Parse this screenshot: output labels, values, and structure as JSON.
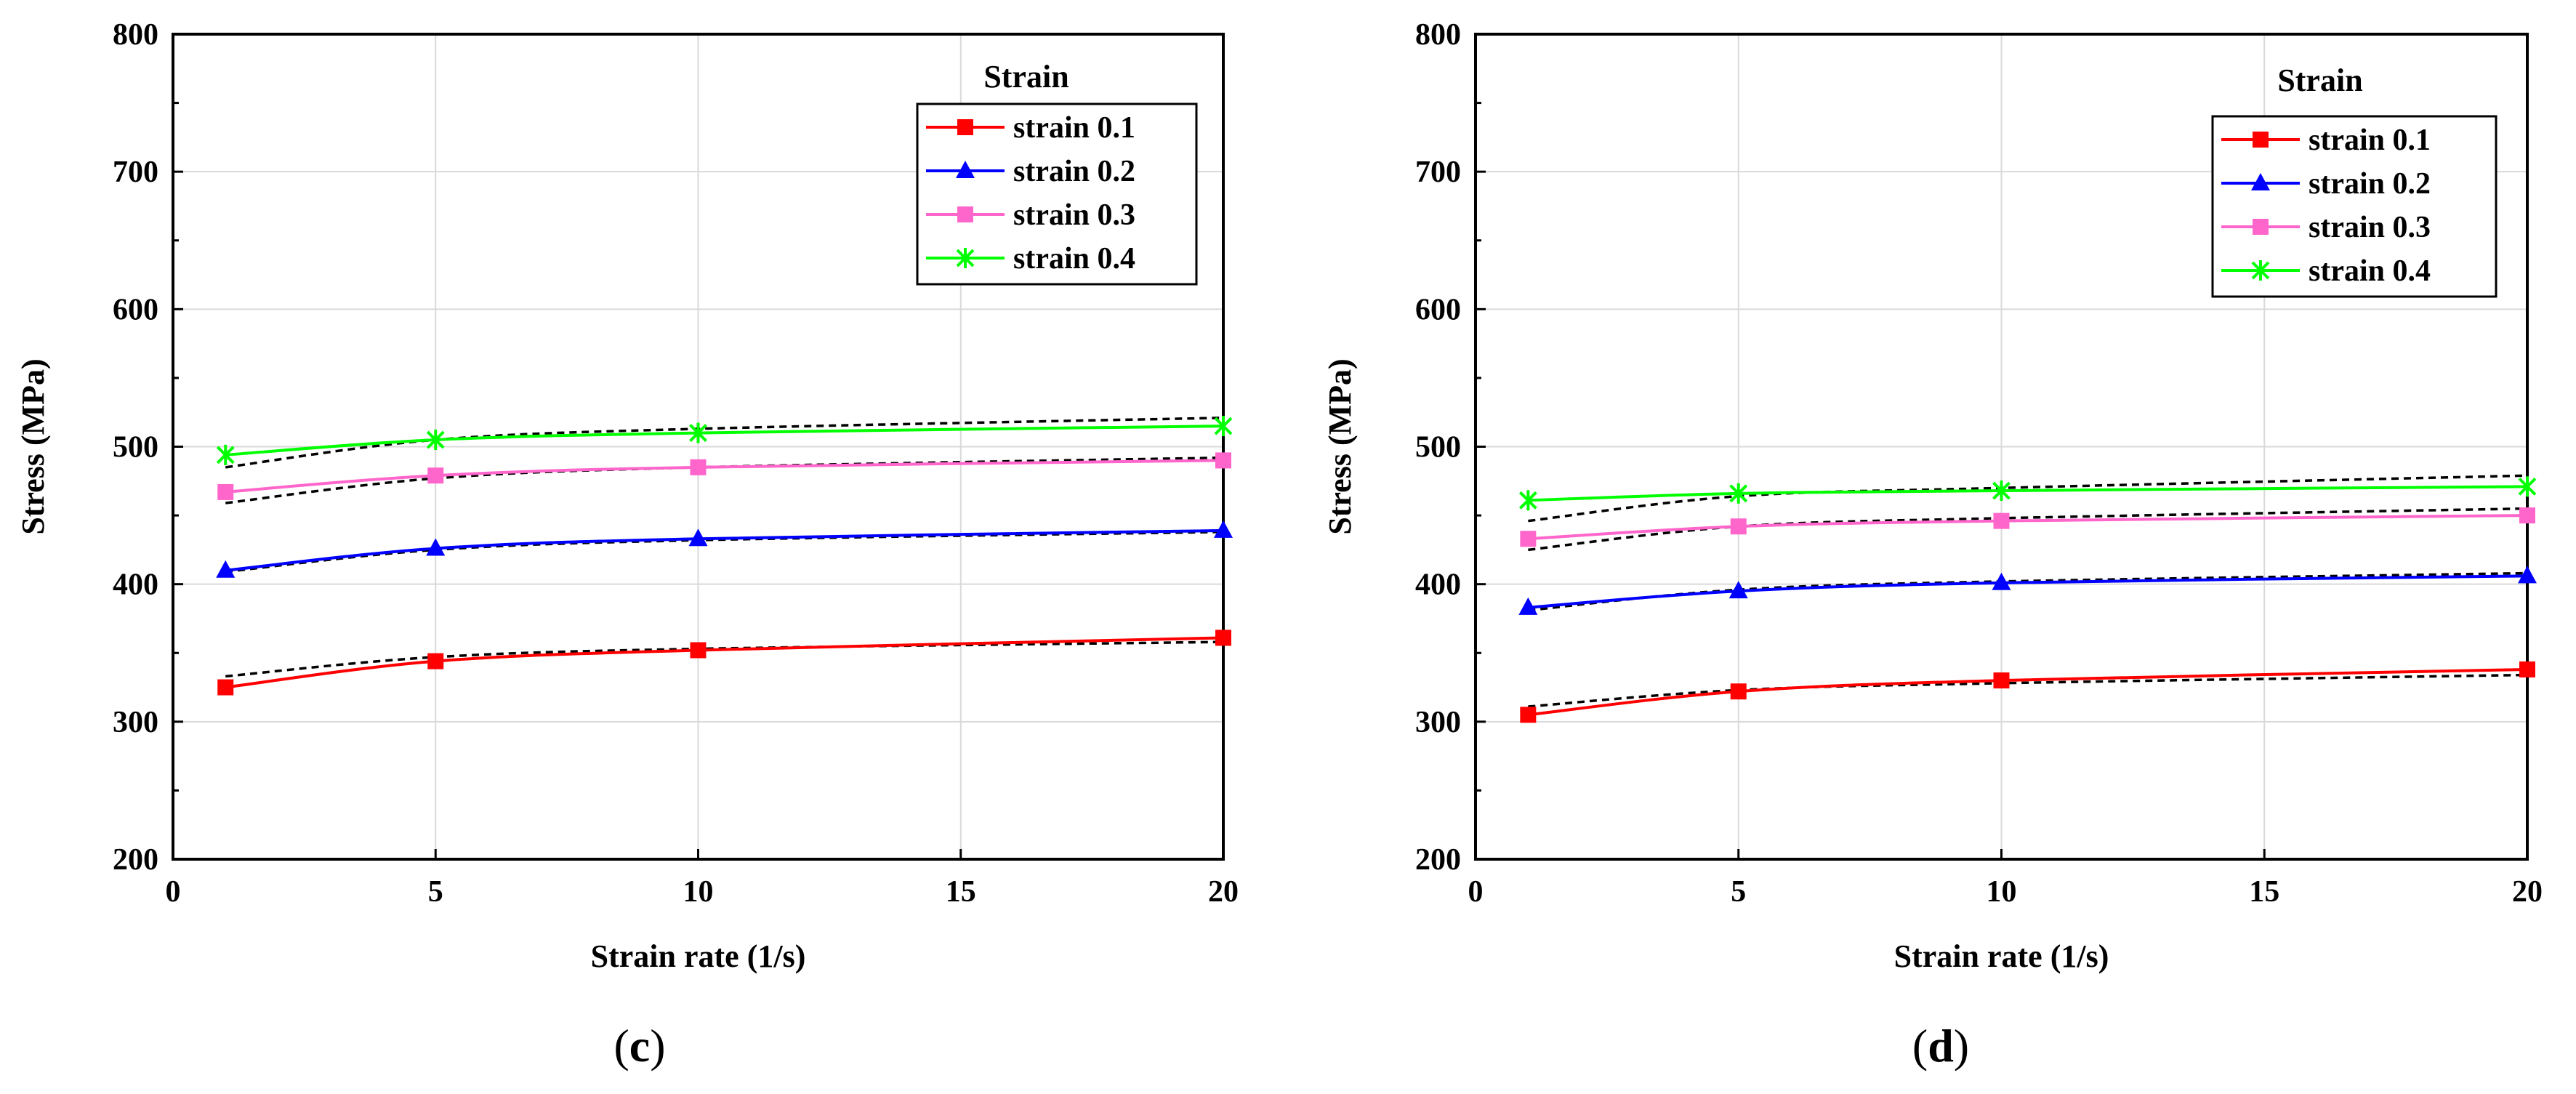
{
  "chart_data": [
    {
      "type": "line",
      "panel_label": "c",
      "xlabel": "Strain rate (1/s)",
      "ylabel": "Stress (MPa)",
      "xlim": [
        0,
        20
      ],
      "ylim": [
        200,
        800
      ],
      "xticks": [
        0,
        5,
        10,
        15,
        20
      ],
      "yticks": [
        200,
        300,
        400,
        500,
        600,
        700,
        800
      ],
      "grid": true,
      "legend": {
        "title": "Strain",
        "placement": "top-right",
        "boxed_title": false
      },
      "x": [
        1,
        5,
        10,
        20
      ],
      "series": [
        {
          "name": "strain 0.1",
          "color": "#ff0000",
          "marker": "square",
          "values": [
            325,
            344,
            352,
            361
          ],
          "fit": [
            333,
            347,
            353,
            358
          ]
        },
        {
          "name": "strain 0.2",
          "color": "#0000ff",
          "marker": "triangle",
          "values": [
            410,
            426,
            433,
            439
          ],
          "fit": [
            409,
            425,
            432,
            438
          ]
        },
        {
          "name": "strain 0.3",
          "color": "#ff66cc",
          "marker": "square",
          "values": [
            467,
            479,
            485,
            490
          ],
          "fit": [
            459,
            477,
            485,
            492
          ]
        },
        {
          "name": "strain 0.4",
          "color": "#00ff00",
          "marker": "star",
          "values": [
            494,
            505,
            510,
            515
          ],
          "fit": [
            485,
            505,
            513,
            521
          ]
        }
      ]
    },
    {
      "type": "line",
      "panel_label": "d",
      "xlabel": "Strain rate (1/s)",
      "ylabel": "Stress (MPa)",
      "xlim": [
        0,
        20
      ],
      "ylim": [
        200,
        800
      ],
      "xticks": [
        0,
        5,
        10,
        15,
        20
      ],
      "yticks": [
        200,
        300,
        400,
        500,
        600,
        700,
        800
      ],
      "grid": true,
      "legend": {
        "title": "Strain",
        "placement": "top-right",
        "boxed_title": false
      },
      "x": [
        1,
        5,
        10,
        20
      ],
      "series": [
        {
          "name": "strain 0.1",
          "color": "#ff0000",
          "marker": "square",
          "values": [
            305,
            322,
            330,
            338
          ],
          "fit": [
            311,
            323,
            328,
            334
          ]
        },
        {
          "name": "strain 0.2",
          "color": "#0000ff",
          "marker": "triangle",
          "values": [
            383,
            395,
            401,
            406
          ],
          "fit": [
            381,
            396,
            402,
            408
          ]
        },
        {
          "name": "strain 0.3",
          "color": "#ff66cc",
          "marker": "square",
          "values": [
            433,
            442,
            446,
            450
          ],
          "fit": [
            425,
            442,
            448,
            455
          ]
        },
        {
          "name": "strain 0.4",
          "color": "#00ff00",
          "marker": "star",
          "values": [
            461,
            466,
            468,
            471
          ],
          "fit": [
            446,
            464,
            470,
            479
          ]
        }
      ]
    }
  ]
}
